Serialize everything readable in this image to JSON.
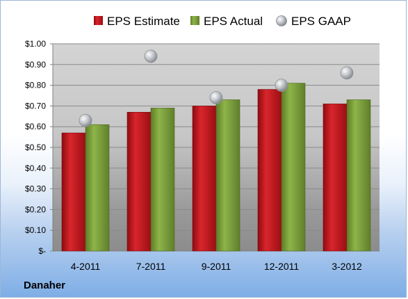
{
  "company": "Danaher",
  "colors": {
    "estimate": "#c8141c",
    "actual": "#7fa33c",
    "gaap": "#b8bcc2"
  },
  "chart_data": {
    "type": "bar",
    "categories": [
      "4-2011",
      "7-2011",
      "9-2011",
      "12-2011",
      "3-2012"
    ],
    "series": [
      {
        "name": "EPS Estimate",
        "values": [
          0.57,
          0.67,
          0.7,
          0.78,
          0.71
        ]
      },
      {
        "name": "EPS Actual",
        "values": [
          0.61,
          0.69,
          0.73,
          0.81,
          0.73
        ]
      },
      {
        "name": "EPS GAAP",
        "values": [
          0.63,
          0.94,
          0.74,
          0.8,
          0.86
        ],
        "marker": "bubble"
      }
    ],
    "ylim": [
      0,
      1.0
    ],
    "ytick_labels": [
      "$-",
      "$0.10",
      "$0.20",
      "$0.30",
      "$0.40",
      "$0.50",
      "$0.60",
      "$0.70",
      "$0.80",
      "$0.90",
      "$1.00"
    ],
    "legend_position": "top",
    "grid": true
  }
}
